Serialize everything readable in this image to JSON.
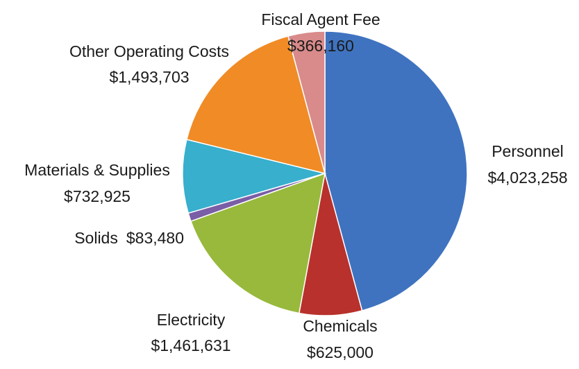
{
  "chart_data": {
    "type": "pie",
    "categories": [
      "Personnel",
      "Chemicals",
      "Electricity",
      "Solids",
      "Materials & Supplies",
      "Other Operating Costs",
      "Fiscal Agent Fee"
    ],
    "values": [
      4023258,
      625000,
      1461631,
      83480,
      732925,
      1493703,
      366160
    ],
    "value_labels": [
      "$4,023,258",
      "$625,000",
      "$1,461,631",
      "$83,480",
      "$732,925",
      "$1,493,703",
      "$366,160"
    ],
    "colors": [
      "#3f73c0",
      "#b8312c",
      "#98b93c",
      "#7a5ea6",
      "#37afcd",
      "#f08b26",
      "#d98a8a"
    ]
  }
}
